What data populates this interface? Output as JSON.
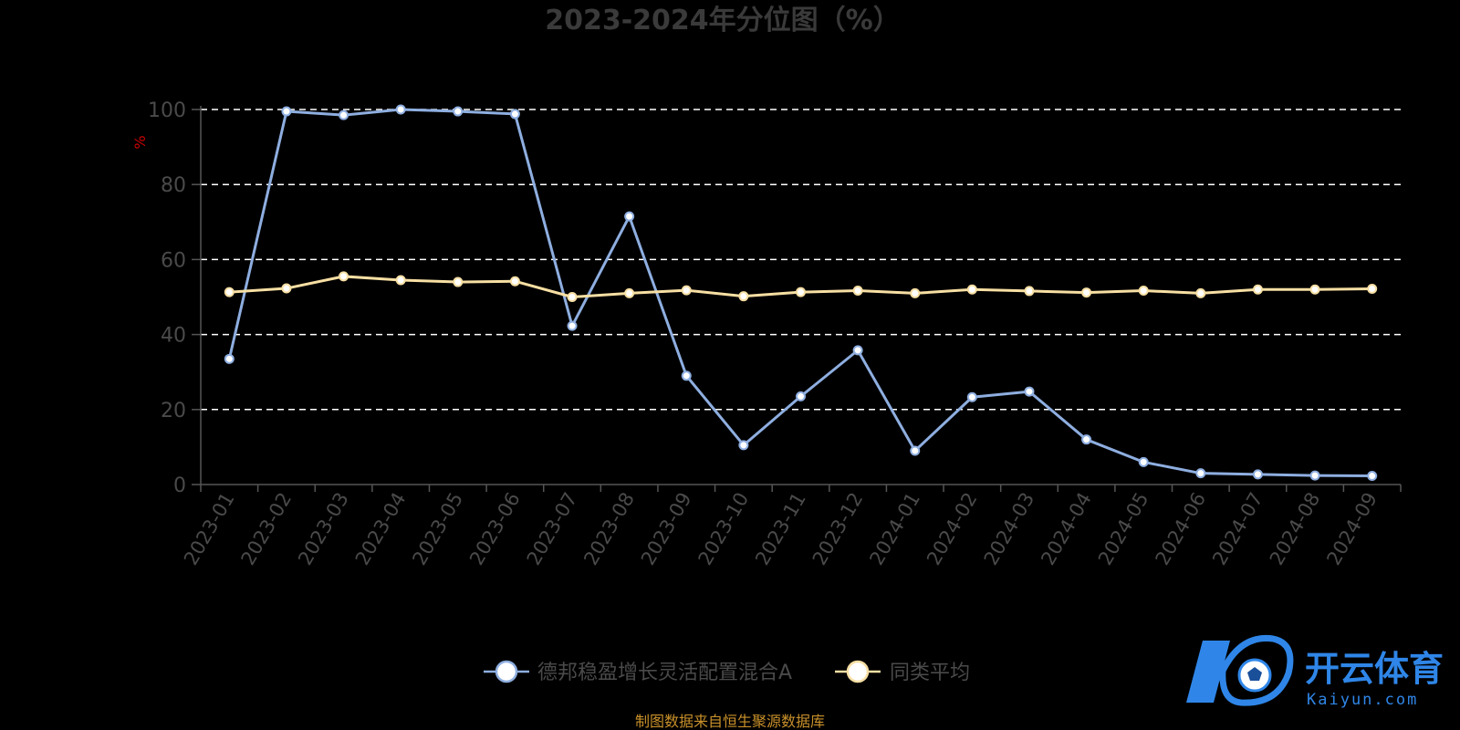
{
  "chart_data": {
    "type": "line",
    "title": "2023-2024年分位图（%）",
    "ylabel": "%",
    "xlabel": "",
    "ylim": [
      0,
      100
    ],
    "yticks": [
      0,
      20,
      40,
      60,
      80,
      100
    ],
    "grid": true,
    "legend_position": "bottom",
    "categories": [
      "2023-01",
      "2023-02",
      "2023-03",
      "2023-04",
      "2023-05",
      "2023-06",
      "2023-07",
      "2023-08",
      "2023-09",
      "2023-10",
      "2023-11",
      "2023-12",
      "2024-01",
      "2024-02",
      "2024-03",
      "2024-04",
      "2024-05",
      "2024-06",
      "2024-07",
      "2024-08",
      "2024-09"
    ],
    "series": [
      {
        "name": "德邦稳盈增长灵活配置混合A",
        "color": "#8eaee0",
        "values": [
          33.5,
          99.5,
          98.5,
          100,
          99.5,
          98.8,
          42.3,
          71.5,
          29,
          10.5,
          23.5,
          35.8,
          9,
          23.3,
          24.8,
          12,
          6,
          3,
          2.7,
          2.4,
          2.3
        ]
      },
      {
        "name": "同类平均",
        "color": "#f7dfa3",
        "values": [
          51.3,
          52.3,
          55.5,
          54.5,
          54,
          54.2,
          50,
          51,
          51.8,
          50.2,
          51.3,
          51.7,
          51,
          52,
          51.6,
          51.2,
          51.7,
          51,
          52,
          52,
          52.2
        ]
      }
    ],
    "source": "制图数据来自恒生聚源数据库"
  },
  "colors": {
    "background": "#000000",
    "axis": "#555555",
    "grid": "#ffffff",
    "text": "#4a4a4a",
    "unit": "#cc0000",
    "source": "#c8902a",
    "logo": "#2f86e8"
  },
  "watermark": {
    "text_cn": "开云体育",
    "text_en": "Kaiyun.com",
    "icon": "kaiyun-logo-icon"
  }
}
